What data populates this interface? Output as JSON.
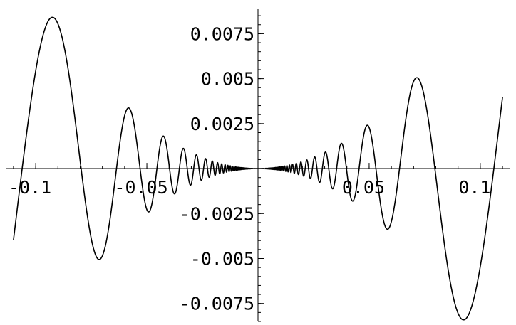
{
  "chart_data": {
    "type": "line",
    "title": "",
    "xlabel": "",
    "ylabel": "",
    "xlim": [
      -0.1135,
      0.1135
    ],
    "ylim": [
      -0.0085,
      0.0089
    ],
    "grid": false,
    "legend": "none",
    "x_ticks": [
      {
        "value": -0.1,
        "label": "-0.1"
      },
      {
        "value": -0.05,
        "label": "-0.05"
      },
      {
        "value": 0.05,
        "label": "0.05"
      },
      {
        "value": 0.1,
        "label": "0.1"
      }
    ],
    "y_ticks": [
      {
        "value": 0.0075,
        "label": "0.0075"
      },
      {
        "value": 0.005,
        "label": "0.005"
      },
      {
        "value": 0.0025,
        "label": "0.0025"
      },
      {
        "value": -0.0025,
        "label": "-0.0025"
      },
      {
        "value": -0.005,
        "label": "-0.005"
      },
      {
        "value": -0.0075,
        "label": "-0.0075"
      }
    ],
    "x_minor_step": 0.01,
    "y_minor_step": 0.0005,
    "series": [
      {
        "x_range": [
          -0.11,
          0.11
        ],
        "samples": 4000,
        "expression": "x^2 * sin(1/x)",
        "color": "#000000"
      }
    ]
  }
}
